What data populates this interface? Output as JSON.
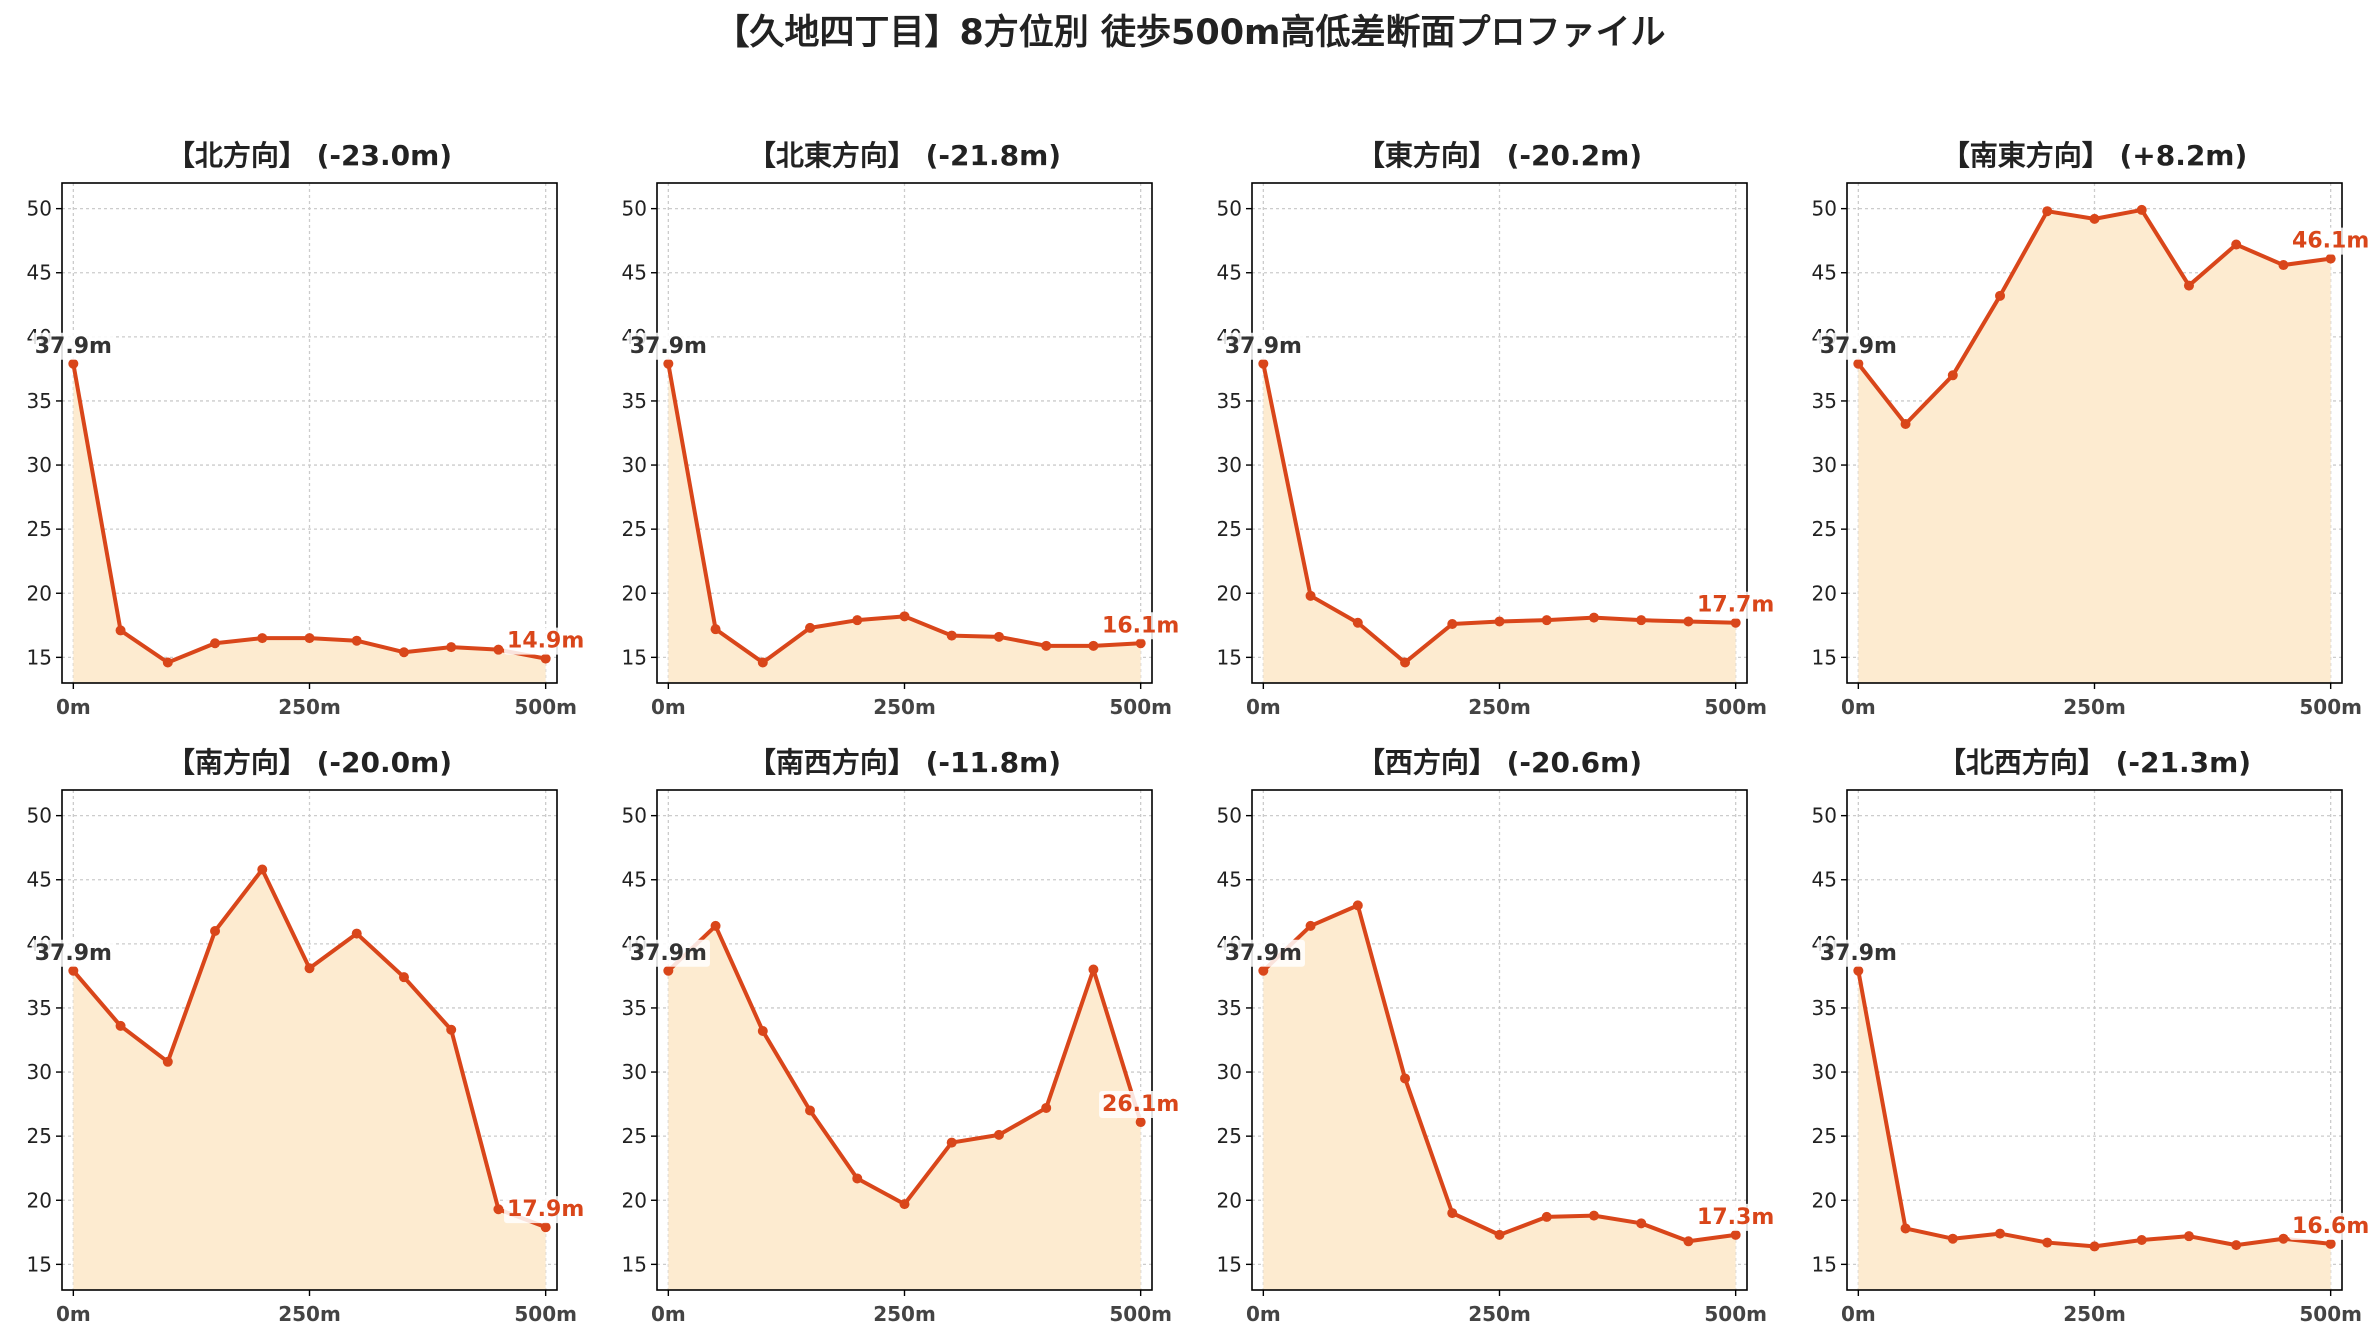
{
  "suptitle": "【久地四丁目】8方位別 徒歩500m高低差断面プロファイル",
  "colors": {
    "line": "#d9461a",
    "fill": "#fdebd0",
    "grid": "#cccccc",
    "start_label": "#333333",
    "end_label": "#d9461a"
  },
  "chart_data": [
    {
      "type": "area",
      "title": "【北方向】 (-23.0m)",
      "x": [
        0,
        50,
        100,
        150,
        200,
        250,
        300,
        350,
        400,
        450,
        500
      ],
      "values": [
        37.9,
        17.1,
        14.6,
        16.1,
        16.5,
        16.5,
        16.3,
        15.4,
        15.8,
        15.6,
        14.9
      ],
      "start_label": "37.9m",
      "end_label": "14.9m"
    },
    {
      "type": "area",
      "title": "【北東方向】 (-21.8m)",
      "x": [
        0,
        50,
        100,
        150,
        200,
        250,
        300,
        350,
        400,
        450,
        500
      ],
      "values": [
        37.9,
        17.2,
        14.6,
        17.3,
        17.9,
        18.2,
        16.7,
        16.6,
        15.9,
        15.9,
        16.1
      ],
      "start_label": "37.9m",
      "end_label": "16.1m"
    },
    {
      "type": "area",
      "title": "【東方向】 (-20.2m)",
      "x": [
        0,
        50,
        100,
        150,
        200,
        250,
        300,
        350,
        400,
        450,
        500
      ],
      "values": [
        37.9,
        19.8,
        17.7,
        14.6,
        17.6,
        17.8,
        17.9,
        18.1,
        17.9,
        17.8,
        17.7
      ],
      "start_label": "37.9m",
      "end_label": "17.7m"
    },
    {
      "type": "area",
      "title": "【南東方向】 (+8.2m)",
      "x": [
        0,
        50,
        100,
        150,
        200,
        250,
        300,
        350,
        400,
        450,
        500
      ],
      "values": [
        37.9,
        33.2,
        37.0,
        43.2,
        49.8,
        49.2,
        49.9,
        44.0,
        47.2,
        45.6,
        46.1
      ],
      "start_label": "37.9m",
      "end_label": "46.1m"
    },
    {
      "type": "area",
      "title": "【南方向】 (-20.0m)",
      "x": [
        0,
        50,
        100,
        150,
        200,
        250,
        300,
        350,
        400,
        450,
        500
      ],
      "values": [
        37.9,
        33.6,
        30.8,
        41.0,
        45.8,
        38.1,
        40.8,
        37.4,
        33.3,
        19.3,
        17.9
      ],
      "start_label": "37.9m",
      "end_label": "17.9m"
    },
    {
      "type": "area",
      "title": "【南西方向】 (-11.8m)",
      "x": [
        0,
        50,
        100,
        150,
        200,
        250,
        300,
        350,
        400,
        450,
        500
      ],
      "values": [
        37.9,
        41.4,
        33.2,
        27.0,
        21.7,
        19.7,
        24.5,
        25.1,
        27.2,
        38.0,
        26.1
      ],
      "start_label": "37.9m",
      "end_label": "26.1m"
    },
    {
      "type": "area",
      "title": "【西方向】 (-20.6m)",
      "x": [
        0,
        50,
        100,
        150,
        200,
        250,
        300,
        350,
        400,
        450,
        500
      ],
      "values": [
        37.9,
        41.4,
        43.0,
        29.5,
        19.0,
        17.3,
        18.7,
        18.8,
        18.2,
        16.8,
        17.3
      ],
      "start_label": "37.9m",
      "end_label": "17.3m"
    },
    {
      "type": "area",
      "title": "【北西方向】 (-21.3m)",
      "x": [
        0,
        50,
        100,
        150,
        200,
        250,
        300,
        350,
        400,
        450,
        500
      ],
      "values": [
        37.9,
        17.8,
        17.0,
        17.4,
        16.7,
        16.4,
        16.9,
        17.2,
        16.5,
        17.0,
        16.6
      ],
      "start_label": "37.9m",
      "end_label": "16.6m"
    }
  ],
  "axes": {
    "ylim": [
      13,
      52
    ],
    "yticks": [
      15,
      20,
      25,
      30,
      35,
      40,
      45,
      50
    ],
    "xlim": [
      -12,
      512
    ],
    "xticks": [
      0,
      250,
      500
    ],
    "xticklabels": [
      "0m",
      "250m",
      "500m"
    ],
    "grid": true
  }
}
